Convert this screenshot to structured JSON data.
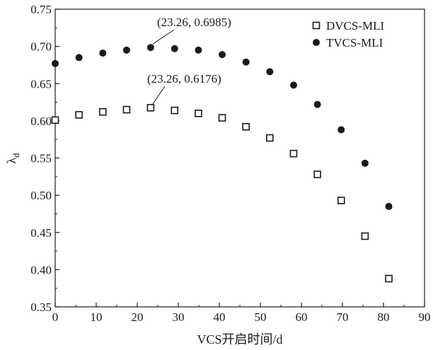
{
  "chart_data": {
    "type": "scatter",
    "title": "",
    "xlabel": "VCS开启时间/d",
    "ylabel_main": "λ",
    "ylabel_sub": "d",
    "xlim": [
      0,
      90
    ],
    "ylim": [
      0.35,
      0.75
    ],
    "xticks": [
      0,
      10,
      20,
      30,
      40,
      50,
      60,
      70,
      80,
      90
    ],
    "xtick_labels": [
      "0",
      "10",
      "20",
      "30",
      "40",
      "50",
      "60",
      "70",
      "80",
      "90"
    ],
    "yticks": [
      0.35,
      0.4,
      0.45,
      0.5,
      0.55,
      0.6,
      0.65,
      0.7,
      0.75
    ],
    "ytick_labels": [
      "0.35",
      "0.40",
      "0.45",
      "0.50",
      "0.55",
      "0.60",
      "0.65",
      "0.70",
      "0.75"
    ],
    "grid": false,
    "legend_position": "top-right",
    "series": [
      {
        "name": "DVCS-MLI",
        "marker": "open-square",
        "color": "#1a1a1a",
        "x": [
          0,
          5.8,
          11.6,
          17.4,
          23.26,
          29.1,
          34.9,
          40.7,
          46.5,
          52.3,
          58.1,
          63.9,
          69.7,
          75.5,
          81.3
        ],
        "y": [
          0.601,
          0.608,
          0.612,
          0.615,
          0.6176,
          0.614,
          0.61,
          0.604,
          0.592,
          0.577,
          0.556,
          0.528,
          0.493,
          0.445,
          0.388
        ]
      },
      {
        "name": "TVCS-MLI",
        "marker": "filled-circle",
        "color": "#1a1a1a",
        "x": [
          0,
          5.8,
          11.6,
          17.4,
          23.26,
          29.1,
          34.9,
          40.7,
          46.5,
          52.3,
          58.1,
          63.9,
          69.7,
          75.5,
          81.3
        ],
        "y": [
          0.677,
          0.685,
          0.691,
          0.695,
          0.6985,
          0.697,
          0.695,
          0.689,
          0.679,
          0.666,
          0.648,
          0.622,
          0.588,
          0.543,
          0.485
        ]
      }
    ],
    "annotations": [
      {
        "text": "(23.26, 0.6985)",
        "x": 23.26,
        "y": 0.6985,
        "series": 1
      },
      {
        "text": "(23.26, 0.6176)",
        "x": 23.26,
        "y": 0.6176,
        "series": 0
      }
    ]
  }
}
